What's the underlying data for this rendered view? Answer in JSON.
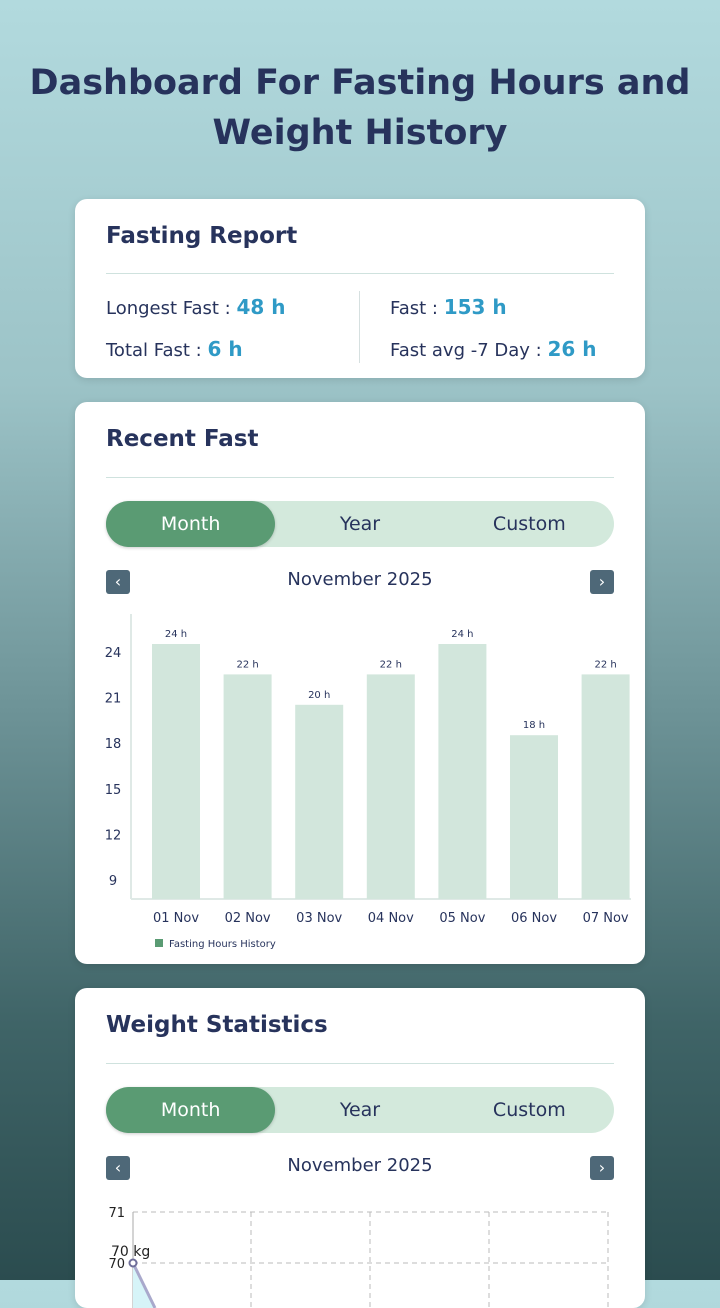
{
  "title": "Dashboard For Fasting Hours and Weight History",
  "report": {
    "title": "Fasting Report",
    "longest_label": "Longest Fast : ",
    "longest_value": "48 h",
    "fast_label": "Fast : ",
    "fast_value": "153 h",
    "total_label": "Total Fast : ",
    "total_value": "6 h",
    "avg_label": "Fast avg -7 Day : ",
    "avg_value": "26 h"
  },
  "recent": {
    "title": "Recent Fast",
    "tabs": [
      "Month",
      "Year",
      "Custom"
    ],
    "month": "November 2025",
    "prev": "‹",
    "next": "›"
  },
  "weight": {
    "title": "Weight Statistics",
    "tabs": [
      "Month",
      "Year",
      "Custom"
    ],
    "month": "November 2025",
    "prev": "‹",
    "next": "›"
  },
  "chart_data": [
    {
      "type": "bar",
      "title": "Recent Fast",
      "categories": [
        "01 Nov",
        "02 Nov",
        "03 Nov",
        "04 Nov",
        "05 Nov",
        "06 Nov",
        "07 Nov"
      ],
      "values": [
        24,
        22,
        20,
        22,
        24,
        18,
        22
      ],
      "data_labels": [
        "24 h",
        "22 h",
        "20 h",
        "22 h",
        "24 h",
        "18 h",
        "22 h"
      ],
      "yticks": [
        9,
        12,
        15,
        18,
        21,
        24
      ],
      "ylim": [
        7.75,
        24
      ],
      "legend": "Fasting Hours History",
      "legend_position": "bottom-left",
      "color": "#d2e6dc",
      "legend_color": "#5a9b73"
    },
    {
      "type": "line",
      "title": "Weight Statistics",
      "yticks": [
        70,
        71
      ],
      "points": [
        {
          "y": 70,
          "label": "70 kg"
        }
      ],
      "grid": true
    }
  ]
}
